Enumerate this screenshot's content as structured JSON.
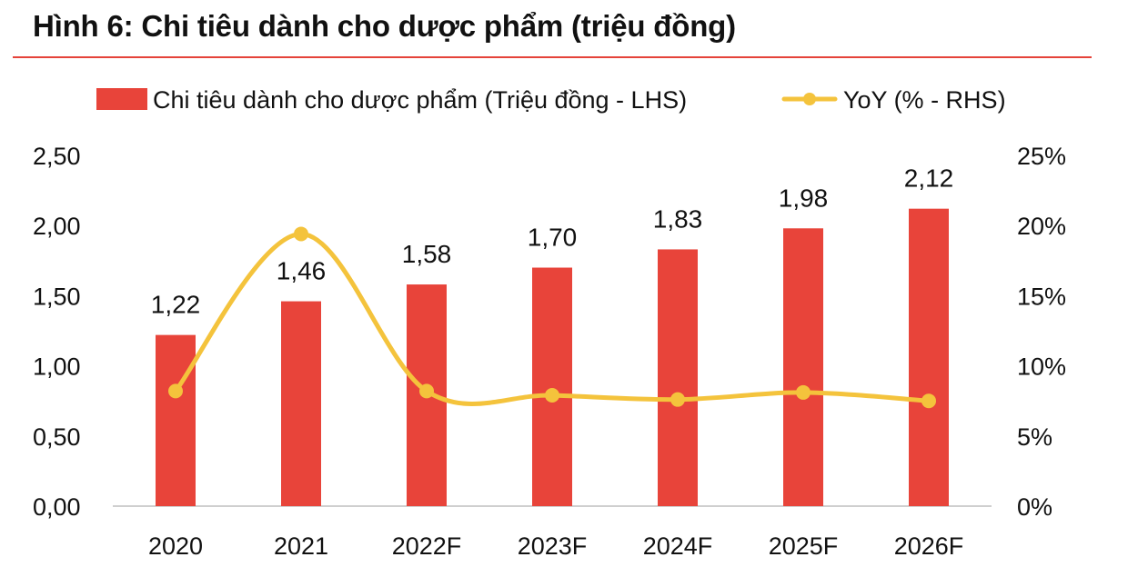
{
  "header": {
    "title": "Hình 6: Chi tiêu dành cho dược phẩm (triệu đồng)"
  },
  "colors": {
    "bar": "#e8443a",
    "line": "#f4c33c",
    "rule": "#e5433a",
    "axis": "#bfbfbf"
  },
  "chart_data": {
    "type": "bar",
    "title": "Hình 6: Chi tiêu dành cho dược phẩm (triệu đồng)",
    "categories": [
      "2020",
      "2021",
      "2022F",
      "2023F",
      "2024F",
      "2025F",
      "2026F"
    ],
    "series": [
      {
        "name": "Chi tiêu dành cho dược phẩm (Triệu đồng - LHS)",
        "type": "bar",
        "axis": "left",
        "values": [
          1.22,
          1.46,
          1.58,
          1.7,
          1.83,
          1.98,
          2.12
        ],
        "labels": [
          "1,22",
          "1,46",
          "1,58",
          "1,70",
          "1,83",
          "1,98",
          "2,12"
        ]
      },
      {
        "name": "YoY (% - RHS)",
        "type": "line",
        "axis": "right",
        "values": [
          8.2,
          19.4,
          8.2,
          7.9,
          7.6,
          8.1,
          7.5
        ]
      }
    ],
    "left_axis": {
      "ylim": [
        0,
        2.5
      ],
      "ticks": [
        0,
        0.5,
        1.0,
        1.5,
        2.0,
        2.5
      ],
      "tick_labels": [
        "0,00",
        "0,50",
        "1,00",
        "1,50",
        "2,00",
        "2,50"
      ]
    },
    "right_axis": {
      "ylim": [
        0,
        25
      ],
      "ticks": [
        0,
        5,
        10,
        15,
        20,
        25
      ],
      "tick_labels": [
        "0%",
        "5%",
        "10%",
        "15%",
        "20%",
        "25%"
      ]
    },
    "legend": {
      "position": "top",
      "bar_label": "Chi tiêu dành cho dược phẩm (Triệu đồng - LHS)",
      "line_label": "YoY (% - RHS)"
    },
    "grid": false
  }
}
